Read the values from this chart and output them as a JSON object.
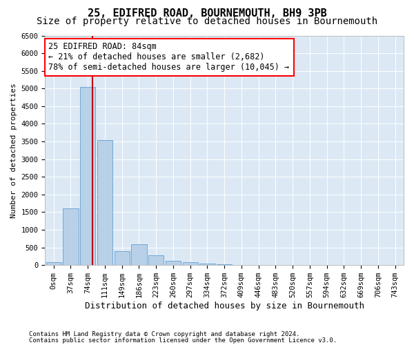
{
  "title": "25, EDIFRED ROAD, BOURNEMOUTH, BH9 3PB",
  "subtitle": "Size of property relative to detached houses in Bournemouth",
  "xlabel": "Distribution of detached houses by size in Bournemouth",
  "ylabel": "Number of detached properties",
  "footer_line1": "Contains HM Land Registry data © Crown copyright and database right 2024.",
  "footer_line2": "Contains public sector information licensed under the Open Government Licence v3.0.",
  "bar_labels": [
    "0sqm",
    "37sqm",
    "74sqm",
    "111sqm",
    "149sqm",
    "186sqm",
    "223sqm",
    "260sqm",
    "297sqm",
    "334sqm",
    "372sqm",
    "409sqm",
    "446sqm",
    "483sqm",
    "520sqm",
    "557sqm",
    "594sqm",
    "632sqm",
    "669sqm",
    "706sqm",
    "743sqm"
  ],
  "bar_values": [
    75,
    1600,
    5050,
    3550,
    400,
    600,
    280,
    120,
    90,
    50,
    15,
    10,
    5,
    5,
    5,
    5,
    5,
    5,
    5,
    5,
    5
  ],
  "bar_color": "#b8d0e8",
  "bar_edge_color": "#6fa8d4",
  "property_line_x": 2.27,
  "annotation_line1": "25 EDIFRED ROAD: 84sqm",
  "annotation_line2": "← 21% of detached houses are smaller (2,682)",
  "annotation_line3": "78% of semi-detached houses are larger (10,045) →",
  "vline_color": "#c00000",
  "plot_bg": "#dce9f5",
  "ylim_max": 6500,
  "ytick_step": 500,
  "title_fontsize": 11,
  "subtitle_fontsize": 10,
  "xlabel_fontsize": 9,
  "ylabel_fontsize": 8,
  "tick_fontsize": 7.5,
  "ann_fontsize": 8.5,
  "footer_fontsize": 6.5
}
